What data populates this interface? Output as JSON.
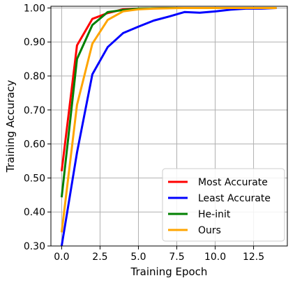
{
  "chart_data": {
    "type": "line",
    "xlabel": "Training Epoch",
    "ylabel": "Training Accuracy",
    "xlim": [
      -0.7,
      14.7
    ],
    "ylim": [
      0.3,
      1.005
    ],
    "xticks": [
      0.0,
      2.5,
      5.0,
      7.5,
      10.0,
      12.5
    ],
    "xtick_labels": [
      "0.0",
      "2.5",
      "5.0",
      "7.5",
      "10.0",
      "12.5"
    ],
    "yticks": [
      0.3,
      0.4,
      0.5,
      0.6,
      0.7,
      0.8,
      0.9,
      1.0
    ],
    "ytick_labels": [
      "0.30",
      "0.40",
      "0.50",
      "0.60",
      "0.70",
      "0.80",
      "0.90",
      "1.00"
    ],
    "grid": true,
    "legend_position": "bottom-right",
    "x": [
      0,
      1,
      2,
      3,
      4,
      5,
      6,
      7,
      8,
      9,
      10,
      11,
      12,
      13,
      14
    ],
    "series": [
      {
        "name": "Most Accurate",
        "color": "#ff0000",
        "values": [
          0.52,
          0.89,
          0.968,
          0.985,
          0.996,
          0.998,
          0.999,
          1.0,
          1.0,
          1.0,
          1.0,
          1.0,
          1.0,
          1.0,
          1.0
        ]
      },
      {
        "name": "Least Accurate",
        "color": "#0000ff",
        "values": [
          0.3,
          0.575,
          0.805,
          0.885,
          0.926,
          0.945,
          0.963,
          0.975,
          0.988,
          0.986,
          0.99,
          0.995,
          0.998,
          0.998,
          1.0
        ]
      },
      {
        "name": "He-init",
        "color": "#008000",
        "values": [
          0.443,
          0.85,
          0.95,
          0.988,
          0.994,
          0.998,
          0.999,
          1.0,
          1.0,
          1.0,
          1.0,
          1.0,
          1.0,
          1.0,
          1.0
        ]
      },
      {
        "name": "Ours",
        "color": "#ffa500",
        "values": [
          0.34,
          0.715,
          0.895,
          0.965,
          0.99,
          0.996,
          0.998,
          0.999,
          1.0,
          1.0,
          1.0,
          1.0,
          1.0,
          1.0,
          1.0
        ]
      }
    ]
  }
}
